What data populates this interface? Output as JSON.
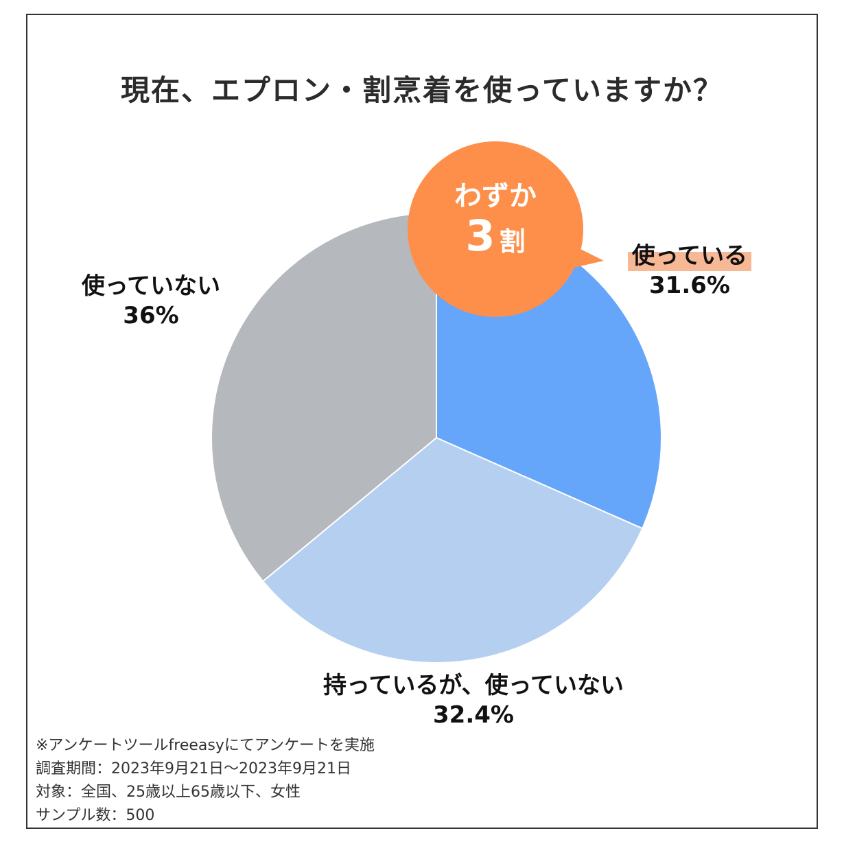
{
  "chart_data": {
    "type": "pie",
    "title": "現在、エプロン・割烹着を使っていますか？",
    "slices": [
      {
        "label": "使っている",
        "value": 31.6,
        "value_label": "31.6%",
        "color": "#66a6fa"
      },
      {
        "label": "持っているが、使っていない",
        "value": 32.4,
        "value_label": "32.4%",
        "color": "#b5cff0"
      },
      {
        "label": "使っていない",
        "value": 36,
        "value_label": "36%",
        "color": "#b5b9bd"
      }
    ],
    "start": "12 o'clock",
    "direction": "clockwise"
  },
  "callout": {
    "line1": "わずか",
    "number": "3",
    "unit": "割",
    "color": "#fd8f4a"
  },
  "highlight_color": "#f7b896",
  "notes": [
    "※アンケートツールfreeasyにてアンケートを実施",
    "調査期間：2023年9月21日～2023年9月21日",
    "対象：全国、25歳以上65歳以下、女性",
    "サンプル数：500"
  ]
}
